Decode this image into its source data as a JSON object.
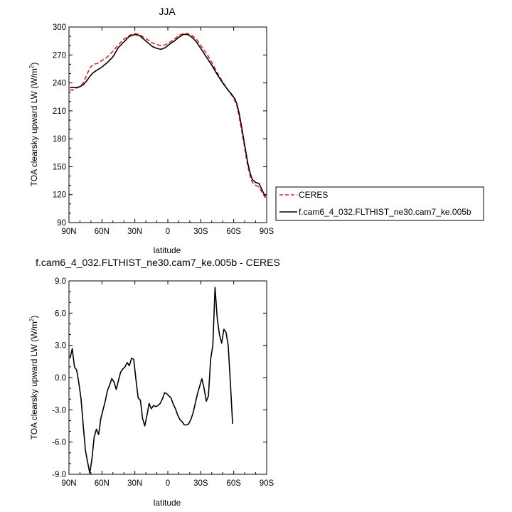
{
  "chart_data": [
    {
      "type": "line",
      "title": "JJA",
      "xlabel": "latitude",
      "ylabel": "TOA clearsky upward LW (W/m",
      "ylabel_sup": "2",
      "ylabel_end": ")",
      "xlim": [
        90,
        -90
      ],
      "ylim": [
        90,
        300
      ],
      "xticks": [
        90,
        60,
        30,
        0,
        -30,
        -60,
        -90
      ],
      "xtick_labels": [
        "90N",
        "60N",
        "30N",
        "0",
        "30S",
        "60S",
        "90S"
      ],
      "yticks": [
        90,
        120,
        150,
        180,
        210,
        240,
        270,
        300
      ],
      "ytick_labels": [
        "90",
        "120",
        "150",
        "180",
        "210",
        "240",
        "270",
        "300"
      ],
      "legend": "right",
      "series": [
        {
          "name": "CERES",
          "color": "#e8211d",
          "dash": "dashed",
          "points": [
            [
              89,
              233
            ],
            [
              87,
              232
            ],
            [
              84,
              234
            ],
            [
              80,
              236
            ],
            [
              77,
              240
            ],
            [
              74,
              248
            ],
            [
              71,
              256
            ],
            [
              68,
              260
            ],
            [
              64,
              261
            ],
            [
              60,
              264
            ],
            [
              55,
              268
            ],
            [
              50,
              274
            ],
            [
              45,
              281
            ],
            [
              40,
              287
            ],
            [
              35,
              291
            ],
            [
              30,
              293
            ],
            [
              26,
              292
            ],
            [
              22,
              289
            ],
            [
              18,
              286
            ],
            [
              14,
              283
            ],
            [
              10,
              281
            ],
            [
              6,
              280
            ],
            [
              2,
              281
            ],
            [
              -2,
              284
            ],
            [
              -6,
              287
            ],
            [
              -10,
              291
            ],
            [
              -14,
              293
            ],
            [
              -18,
              293
            ],
            [
              -22,
              291
            ],
            [
              -26,
              287
            ],
            [
              -30,
              280
            ],
            [
              -35,
              272
            ],
            [
              -40,
              262
            ],
            [
              -45,
              251
            ],
            [
              -50,
              241
            ],
            [
              -55,
              232
            ],
            [
              -58,
              227
            ],
            [
              -61,
              221
            ],
            [
              -63,
              215
            ],
            [
              -65,
              203
            ],
            [
              -67,
              190
            ],
            [
              -69,
              177
            ],
            [
              -71,
              162
            ],
            [
              -73,
              150
            ],
            [
              -75,
              140
            ],
            [
              -77,
              133
            ],
            [
              -80,
              130
            ],
            [
              -83,
              128
            ],
            [
              -85,
              124
            ],
            [
              -87,
              120
            ],
            [
              -89,
              116
            ]
          ]
        },
        {
          "name": "f.cam6_4_032.FLTHIST_ne30.cam7_ke.005b",
          "color": "#000000",
          "dash": "solid",
          "points": [
            [
              89,
              235
            ],
            [
              86,
              235
            ],
            [
              83,
              235
            ],
            [
              80,
              236
            ],
            [
              77,
              238
            ],
            [
              74,
              242
            ],
            [
              71,
              247
            ],
            [
              68,
              251
            ],
            [
              64,
              254
            ],
            [
              60,
              257
            ],
            [
              55,
              262
            ],
            [
              50,
              268
            ],
            [
              45,
              278
            ],
            [
              40,
              284
            ],
            [
              35,
              290
            ],
            [
              30,
              292
            ],
            [
              26,
              291
            ],
            [
              22,
              287
            ],
            [
              18,
              283
            ],
            [
              14,
              279
            ],
            [
              10,
              277
            ],
            [
              6,
              276
            ],
            [
              2,
              278
            ],
            [
              -2,
              282
            ],
            [
              -6,
              285
            ],
            [
              -10,
              289
            ],
            [
              -14,
              292
            ],
            [
              -18,
              292
            ],
            [
              -22,
              289
            ],
            [
              -26,
              284
            ],
            [
              -30,
              277
            ],
            [
              -35,
              268
            ],
            [
              -40,
              259
            ],
            [
              -45,
              249
            ],
            [
              -50,
              240
            ],
            [
              -55,
              232
            ],
            [
              -58,
              228
            ],
            [
              -61,
              223
            ],
            [
              -63,
              217
            ],
            [
              -65,
              207
            ],
            [
              -67,
              194
            ],
            [
              -69,
              180
            ],
            [
              -71,
              166
            ],
            [
              -73,
              153
            ],
            [
              -75,
              143
            ],
            [
              -77,
              136
            ],
            [
              -80,
              133
            ],
            [
              -83,
              132
            ],
            [
              -85,
              127
            ],
            [
              -87,
              122
            ],
            [
              -89,
              118
            ]
          ]
        }
      ]
    },
    {
      "type": "line",
      "title": "f.cam6_4_032.FLTHIST_ne30.cam7_ke.005b - CERES",
      "xlabel": "latitude",
      "ylabel": "TOA clearsky upward LW (W/m",
      "ylabel_sup": "2",
      "ylabel_end": ")",
      "xlim": [
        90,
        -90
      ],
      "ylim": [
        -9.0,
        9.0
      ],
      "xticks": [
        90,
        60,
        30,
        0,
        -30,
        -60,
        -90
      ],
      "xtick_labels": [
        "90N",
        "60N",
        "30N",
        "0",
        "30S",
        "60S",
        "90S"
      ],
      "yticks": [
        -9,
        -6,
        -3,
        0,
        3,
        6,
        9
      ],
      "ytick_labels": [
        "-9.0",
        "-6.0",
        "-3.0",
        "0.0",
        "3.0",
        "6.0",
        "9.0"
      ],
      "series": [
        {
          "color": "#000000",
          "dash": "solid",
          "points": [
            [
              89,
              1.8
            ],
            [
              87,
              2.7
            ],
            [
              85,
              1.0
            ],
            [
              83,
              0.7
            ],
            [
              81,
              -0.5
            ],
            [
              79,
              -2.0
            ],
            [
              77,
              -4.5
            ],
            [
              75,
              -6.8
            ],
            [
              73,
              -7.9
            ],
            [
              71,
              -8.9
            ],
            [
              69,
              -7.5
            ],
            [
              67,
              -5.5
            ],
            [
              65,
              -4.8
            ],
            [
              63,
              -5.3
            ],
            [
              61,
              -3.8
            ],
            [
              59,
              -3.0
            ],
            [
              57,
              -2.2
            ],
            [
              55,
              -1.2
            ],
            [
              53,
              -0.7
            ],
            [
              51,
              -0.1
            ],
            [
              49,
              -0.4
            ],
            [
              47,
              -1.1
            ],
            [
              45,
              -0.3
            ],
            [
              43,
              0.5
            ],
            [
              41,
              0.8
            ],
            [
              39,
              1.0
            ],
            [
              37,
              1.4
            ],
            [
              35,
              1.1
            ],
            [
              33,
              1.8
            ],
            [
              31,
              1.7
            ],
            [
              29,
              -0.2
            ],
            [
              27,
              -1.9
            ],
            [
              25,
              -2.1
            ],
            [
              23,
              -3.8
            ],
            [
              21,
              -4.5
            ],
            [
              19,
              -3.5
            ],
            [
              17,
              -2.4
            ],
            [
              15,
              -2.9
            ],
            [
              13,
              -2.6
            ],
            [
              11,
              -2.7
            ],
            [
              9,
              -2.6
            ],
            [
              7,
              -2.4
            ],
            [
              5,
              -2.0
            ],
            [
              3,
              -1.4
            ],
            [
              1,
              -1.5
            ],
            [
              -1,
              -1.7
            ],
            [
              -3,
              -1.9
            ],
            [
              -5,
              -2.5
            ],
            [
              -7,
              -2.9
            ],
            [
              -9,
              -3.5
            ],
            [
              -11,
              -3.9
            ],
            [
              -13,
              -4.1
            ],
            [
              -15,
              -4.4
            ],
            [
              -17,
              -4.4
            ],
            [
              -19,
              -4.3
            ],
            [
              -21,
              -3.9
            ],
            [
              -23,
              -3.3
            ],
            [
              -25,
              -2.4
            ],
            [
              -27,
              -1.5
            ],
            [
              -29,
              -0.8
            ],
            [
              -31,
              -0.1
            ],
            [
              -33,
              -1.0
            ],
            [
              -35,
              -2.2
            ],
            [
              -37,
              -1.7
            ],
            [
              -39,
              1.7
            ],
            [
              -41,
              3.0
            ],
            [
              -43,
              8.4
            ],
            [
              -45,
              5.5
            ],
            [
              -47,
              4.0
            ],
            [
              -49,
              3.2
            ],
            [
              -51,
              4.5
            ],
            [
              -53,
              4.2
            ],
            [
              -55,
              3.0
            ],
            [
              -57,
              -0.5
            ],
            [
              -59,
              -4.3
            ]
          ]
        }
      ]
    }
  ]
}
